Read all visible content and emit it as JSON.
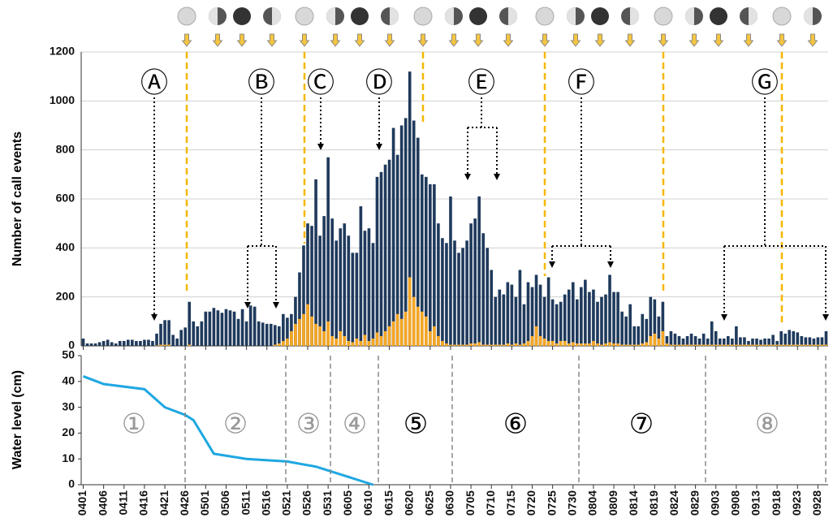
{
  "chart_data": [
    {
      "type": "bar",
      "ylabel": "Number of call events",
      "categories": [
        "0401",
        null,
        null,
        null,
        null,
        "0406",
        null,
        null,
        null,
        null,
        "0411",
        null,
        null,
        null,
        null,
        "0416",
        null,
        null,
        null,
        null,
        "0421",
        null,
        null,
        null,
        null,
        "0426",
        null,
        null,
        null,
        null,
        "0501",
        null,
        null,
        null,
        null,
        "0506",
        null,
        null,
        null,
        null,
        "0511",
        null,
        null,
        null,
        null,
        "0516",
        null,
        null,
        null,
        null,
        "0521",
        null,
        null,
        null,
        null,
        "0526",
        null,
        null,
        null,
        null,
        "0531",
        null,
        null,
        null,
        null,
        "0605",
        null,
        null,
        null,
        null,
        "0610",
        null,
        null,
        null,
        null,
        "0615",
        null,
        null,
        null,
        null,
        "0620",
        null,
        null,
        null,
        null,
        "0625",
        null,
        null,
        null,
        null,
        "0630",
        null,
        null,
        null,
        null,
        "0705",
        null,
        null,
        null,
        null,
        "0710",
        null,
        null,
        null,
        null,
        "0715",
        null,
        null,
        null,
        null,
        "0720",
        null,
        null,
        null,
        null,
        "0725",
        null,
        null,
        null,
        null,
        "0730",
        null,
        null,
        null,
        null,
        "0804",
        null,
        null,
        null,
        null,
        "0809",
        null,
        null,
        null,
        null,
        "0814",
        null,
        null,
        null,
        null,
        "0819",
        null,
        null,
        null,
        null,
        "0824",
        null,
        null,
        null,
        null,
        "0829",
        null,
        null,
        null,
        null,
        "0903",
        null,
        null,
        null,
        null,
        "0908",
        null,
        null,
        null,
        null,
        "0913",
        null,
        null,
        null,
        null,
        "0918",
        null,
        null,
        null,
        null,
        "0923",
        null,
        null,
        null,
        null,
        "0928",
        null,
        null
      ],
      "series": [
        {
          "color": "#1f3a5c",
          "values": [
            30,
            10,
            10,
            10,
            15,
            20,
            25,
            15,
            10,
            20,
            20,
            25,
            25,
            20,
            20,
            25,
            25,
            20,
            50,
            90,
            105,
            105,
            45,
            30,
            65,
            75,
            180,
            100,
            80,
            100,
            140,
            140,
            155,
            145,
            135,
            150,
            145,
            140,
            110,
            150,
            100,
            165,
            160,
            100,
            95,
            90,
            90,
            85,
            80,
            130,
            115,
            130,
            200,
            300,
            410,
            500,
            490,
            680,
            450,
            530,
            770,
            520,
            430,
            480,
            500,
            450,
            380,
            380,
            570,
            470,
            480,
            420,
            690,
            710,
            740,
            760,
            890,
            780,
            900,
            930,
            1120,
            920,
            850,
            700,
            690,
            660,
            660,
            500,
            440,
            420,
            610,
            430,
            380,
            400,
            430,
            500,
            520,
            610,
            460,
            400,
            310,
            200,
            230,
            210,
            260,
            250,
            200,
            310,
            170,
            260,
            240,
            290,
            250,
            200,
            280,
            190,
            170,
            180,
            210,
            230,
            260,
            190,
            240,
            270,
            220,
            230,
            180,
            200,
            210,
            290,
            220,
            220,
            140,
            120,
            170,
            80,
            80,
            130,
            110,
            200,
            190,
            120,
            180,
            40,
            60,
            50,
            40,
            30,
            40,
            50,
            40,
            30,
            50,
            30,
            100,
            60,
            30,
            30,
            40,
            30,
            80,
            35,
            35,
            20,
            30,
            30,
            25,
            30,
            30,
            45,
            20,
            60,
            50,
            65,
            60,
            55,
            40,
            35,
            35,
            30,
            35,
            35,
            60
          ]
        },
        {
          "color": "#f5a623",
          "values": [
            0,
            0,
            0,
            0,
            0,
            0,
            0,
            0,
            0,
            0,
            0,
            0,
            0,
            0,
            0,
            0,
            0,
            0,
            2,
            5,
            5,
            5,
            0,
            0,
            0,
            0,
            5,
            0,
            0,
            0,
            0,
            0,
            0,
            0,
            0,
            0,
            0,
            0,
            0,
            0,
            0,
            0,
            0,
            0,
            0,
            0,
            0,
            5,
            10,
            20,
            30,
            60,
            90,
            110,
            130,
            170,
            120,
            90,
            80,
            60,
            100,
            40,
            30,
            60,
            40,
            20,
            15,
            30,
            20,
            45,
            20,
            30,
            55,
            40,
            60,
            80,
            100,
            130,
            110,
            140,
            280,
            200,
            160,
            140,
            120,
            60,
            80,
            40,
            20,
            10,
            5,
            5,
            5,
            5,
            5,
            10,
            10,
            15,
            5,
            5,
            5,
            5,
            5,
            5,
            10,
            5,
            10,
            5,
            10,
            20,
            40,
            80,
            40,
            30,
            20,
            20,
            10,
            20,
            20,
            10,
            15,
            10,
            10,
            10,
            10,
            20,
            10,
            5,
            10,
            15,
            10,
            10,
            5,
            5,
            5,
            5,
            5,
            10,
            15,
            40,
            50,
            30,
            60,
            10,
            5,
            5,
            5,
            5,
            5,
            5,
            5,
            5,
            5,
            5,
            5,
            5,
            5,
            5,
            5,
            5,
            5,
            5,
            5,
            5,
            5,
            5,
            5,
            5,
            5,
            5,
            5,
            5,
            5,
            5,
            5,
            5,
            5,
            5,
            5,
            5,
            5,
            5,
            5
          ]
        }
      ],
      "ylim": [
        0,
        1200
      ],
      "yticks": [
        0,
        200,
        400,
        600,
        800,
        1000,
        1200
      ],
      "grid": true,
      "annotations": [
        "Ⓐ",
        "Ⓑ",
        "Ⓒ",
        "Ⓓ",
        "Ⓔ",
        "Ⓕ",
        "Ⓖ"
      ]
    },
    {
      "type": "line",
      "ylabel": "Water level (cm)",
      "x": [
        "0401",
        "0406",
        "0416",
        "0421",
        "0426",
        "0428",
        "0503",
        "0511",
        "0521",
        "0528",
        "0605",
        "0611"
      ],
      "series": [
        {
          "color": "#1ea7e1",
          "values": [
            42,
            39,
            37,
            30,
            27,
            25,
            12,
            10,
            9,
            7,
            3,
            0
          ]
        }
      ],
      "ylim": [
        0,
        50
      ],
      "yticks": [
        0,
        10,
        20,
        30,
        40,
        50
      ],
      "annotations": [
        "①",
        "②",
        "③",
        "④",
        "⑤",
        "⑥",
        "⑦",
        "⑧"
      ]
    }
  ]
}
